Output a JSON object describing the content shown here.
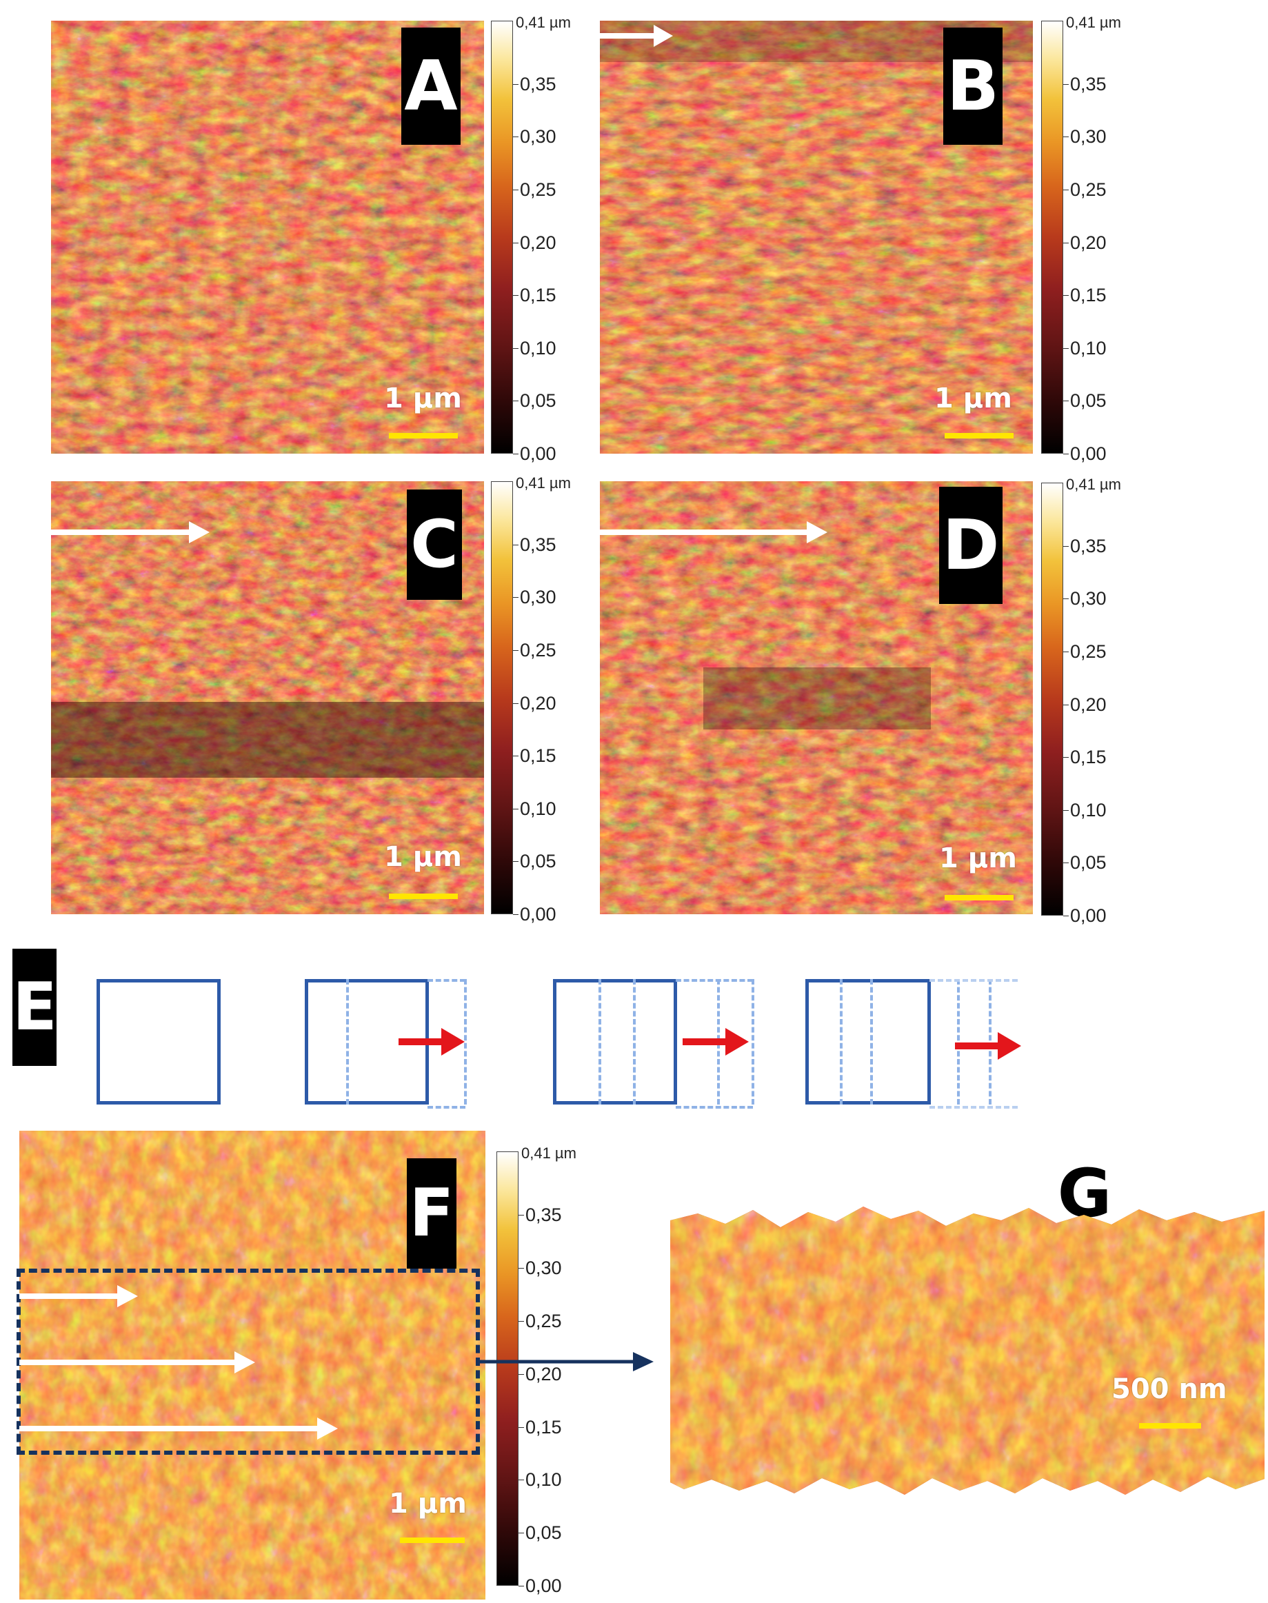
{
  "panels": [
    {
      "label": "A",
      "scale": "1 µm"
    },
    {
      "label": "B",
      "scale": "1 µm"
    },
    {
      "label": "C",
      "scale": "1 µm"
    },
    {
      "label": "D",
      "scale": "1 µm"
    },
    {
      "label": "E"
    },
    {
      "label": "F",
      "scale": "1 µm"
    },
    {
      "label": "G",
      "scale": "500 nm"
    }
  ],
  "colorbar": {
    "top_label": "0,41 µm",
    "ticks": [
      "0,35",
      "0,30",
      "0,25",
      "0,20",
      "0,15",
      "0,10",
      "0,05",
      "0,00"
    ]
  },
  "colors": {
    "scale_bar": "#ffe600",
    "frame_blue": "#2d5aa8",
    "dashed_blue": "#8fb2e6",
    "red_arrow": "#e3161b",
    "white_arrow": "#ffffff",
    "dark_box": "#16325e"
  }
}
